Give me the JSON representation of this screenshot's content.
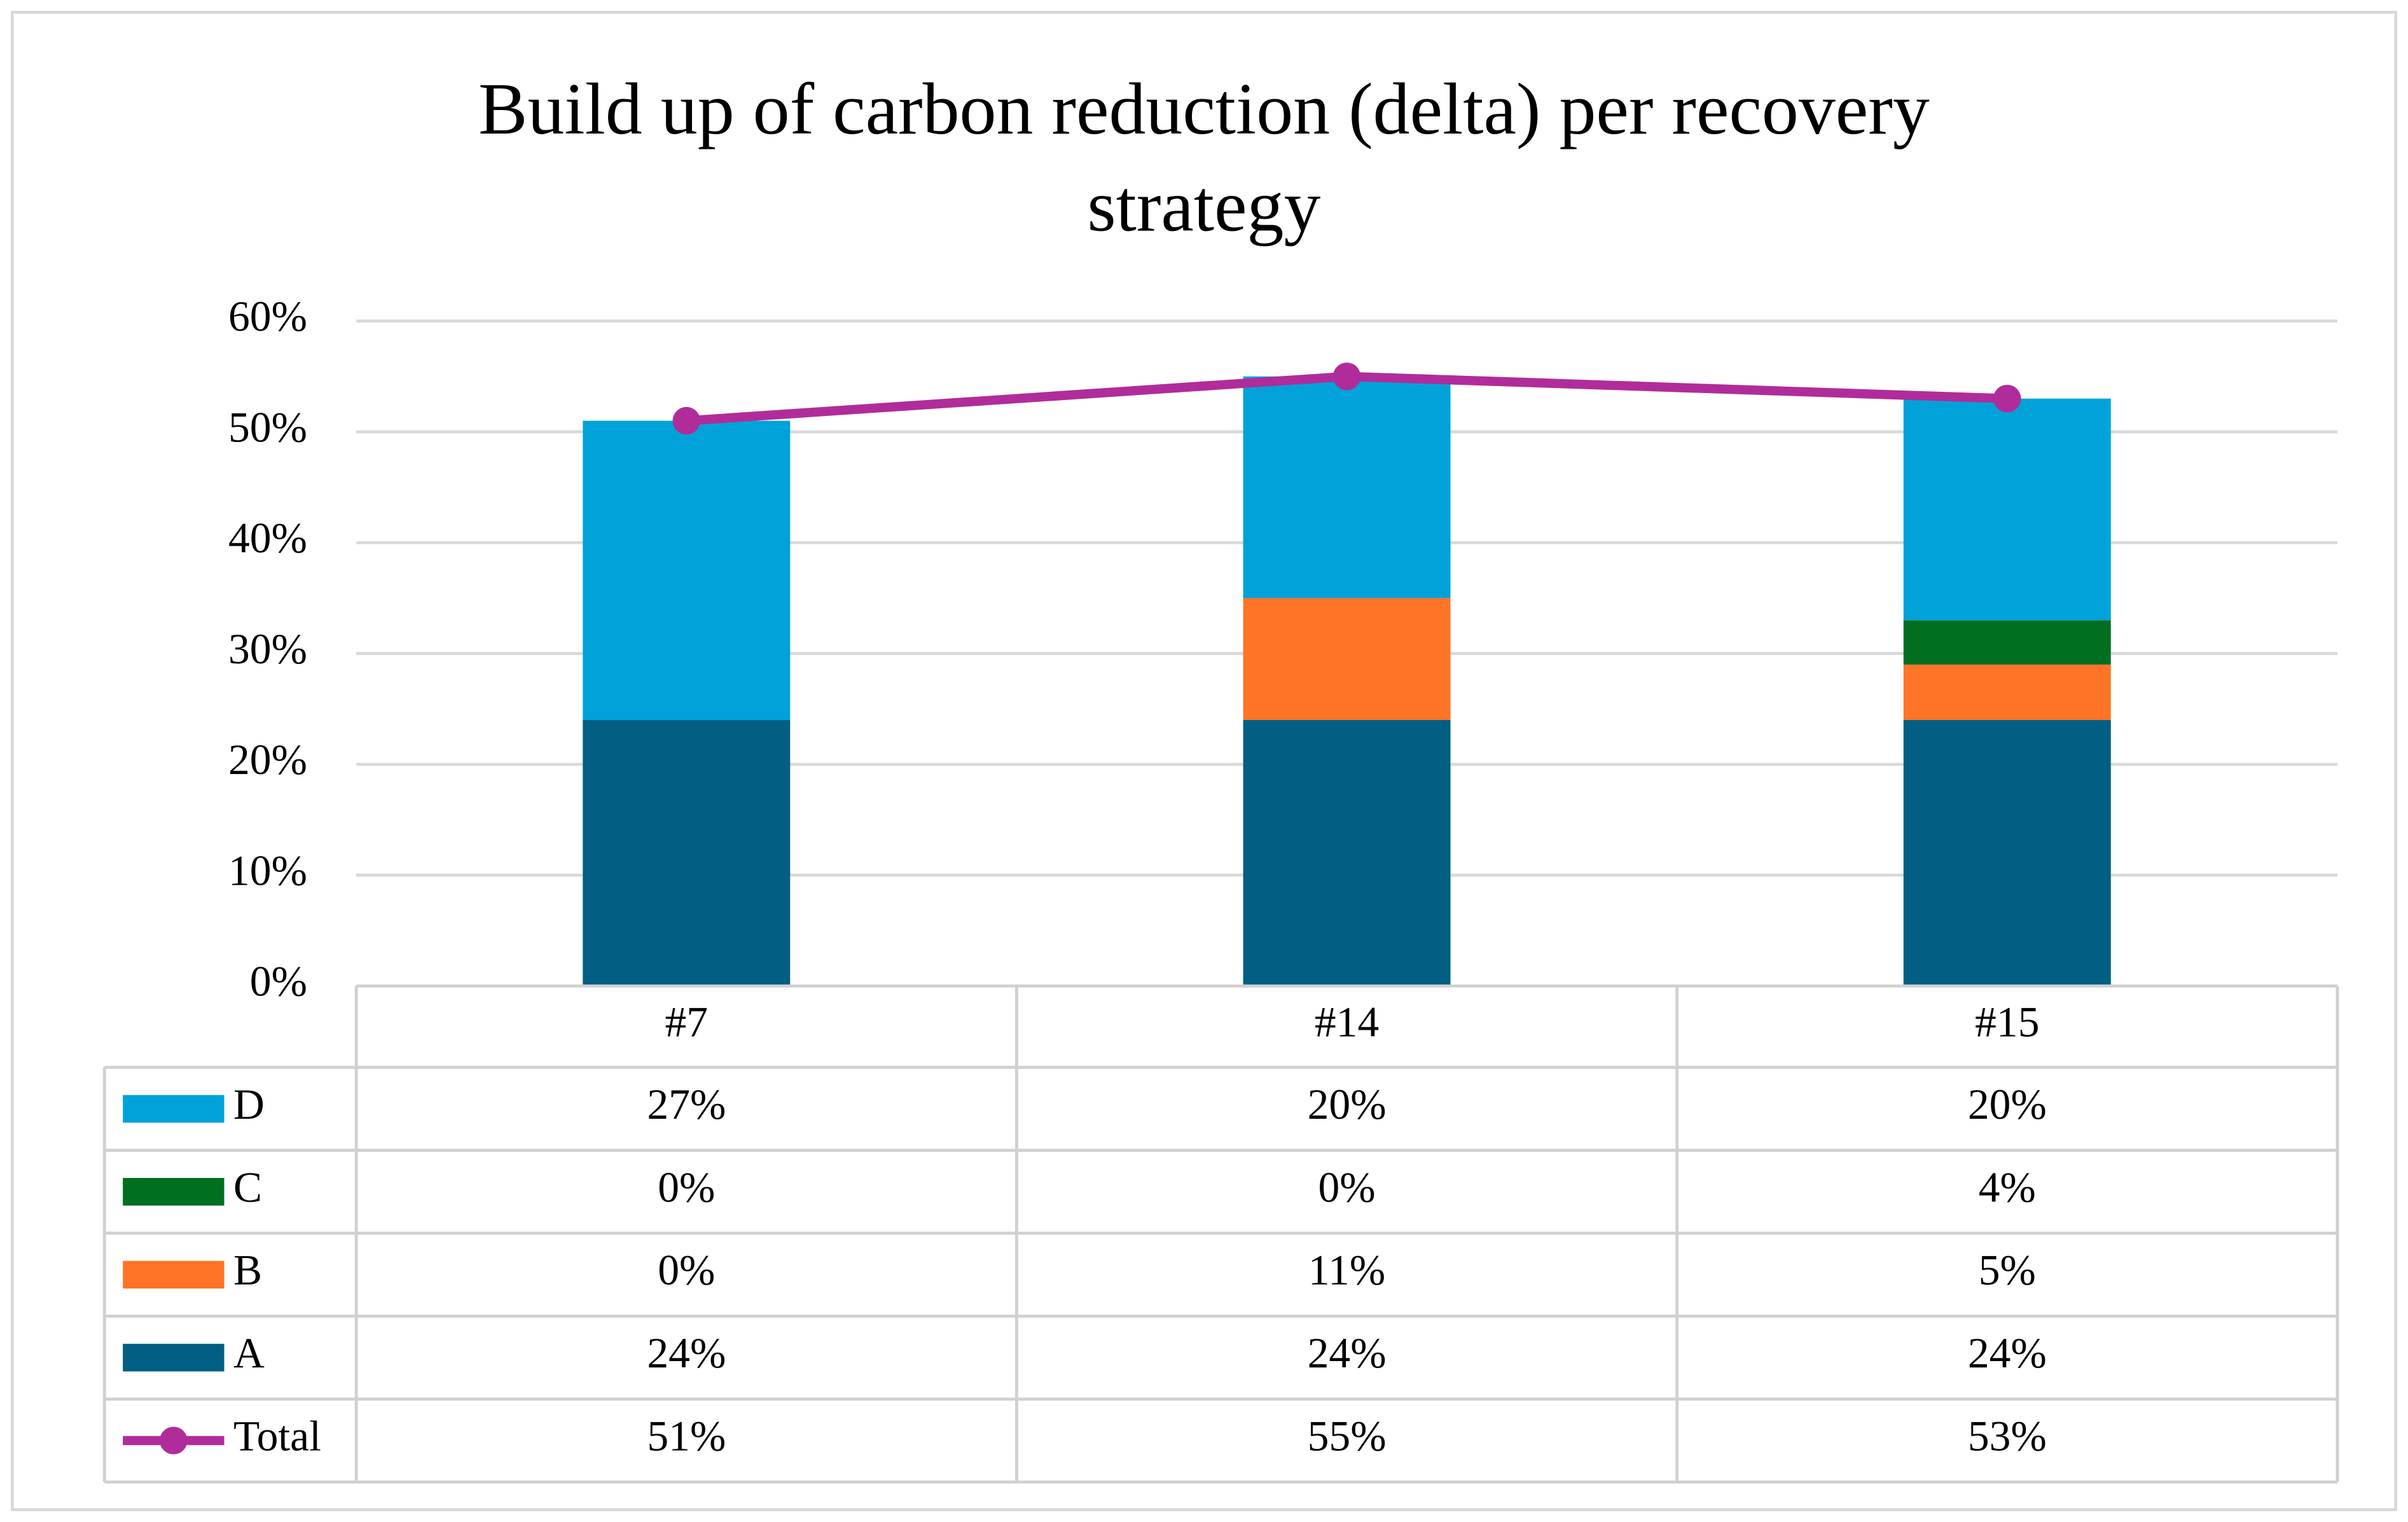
{
  "chart_data": {
    "type": "bar",
    "stacked": true,
    "title": "Build up of carbon reduction (delta) per recovery strategy",
    "categories": [
      "#7",
      "#14",
      "#15"
    ],
    "series": [
      {
        "name": "A",
        "color": "#005f83",
        "values": [
          24,
          24,
          24
        ],
        "value_labels": [
          "24%",
          "24%",
          "24%"
        ]
      },
      {
        "name": "B",
        "color": "#ff7427",
        "values": [
          0,
          11,
          5
        ],
        "value_labels": [
          "0%",
          "11%",
          "5%"
        ]
      },
      {
        "name": "C",
        "color": "#006f22",
        "values": [
          0,
          0,
          4
        ],
        "value_labels": [
          "0%",
          "0%",
          "4%"
        ]
      },
      {
        "name": "D",
        "color": "#00a2d9",
        "values": [
          27,
          20,
          20
        ],
        "value_labels": [
          "27%",
          "20%",
          "20%"
        ]
      },
      {
        "name": "Total",
        "type": "line",
        "color": "#b02c9b",
        "values": [
          51,
          55,
          53
        ],
        "value_labels": [
          "51%",
          "55%",
          "53%"
        ]
      }
    ],
    "ylim": [
      0,
      60
    ],
    "yticks": [
      {
        "value": 0,
        "label": "0%"
      },
      {
        "value": 10,
        "label": "10%"
      },
      {
        "value": 20,
        "label": "20%"
      },
      {
        "value": 30,
        "label": "30%"
      },
      {
        "value": 40,
        "label": "40%"
      },
      {
        "value": 50,
        "label": "50%"
      },
      {
        "value": 60,
        "label": "60%"
      }
    ],
    "grid": true
  }
}
